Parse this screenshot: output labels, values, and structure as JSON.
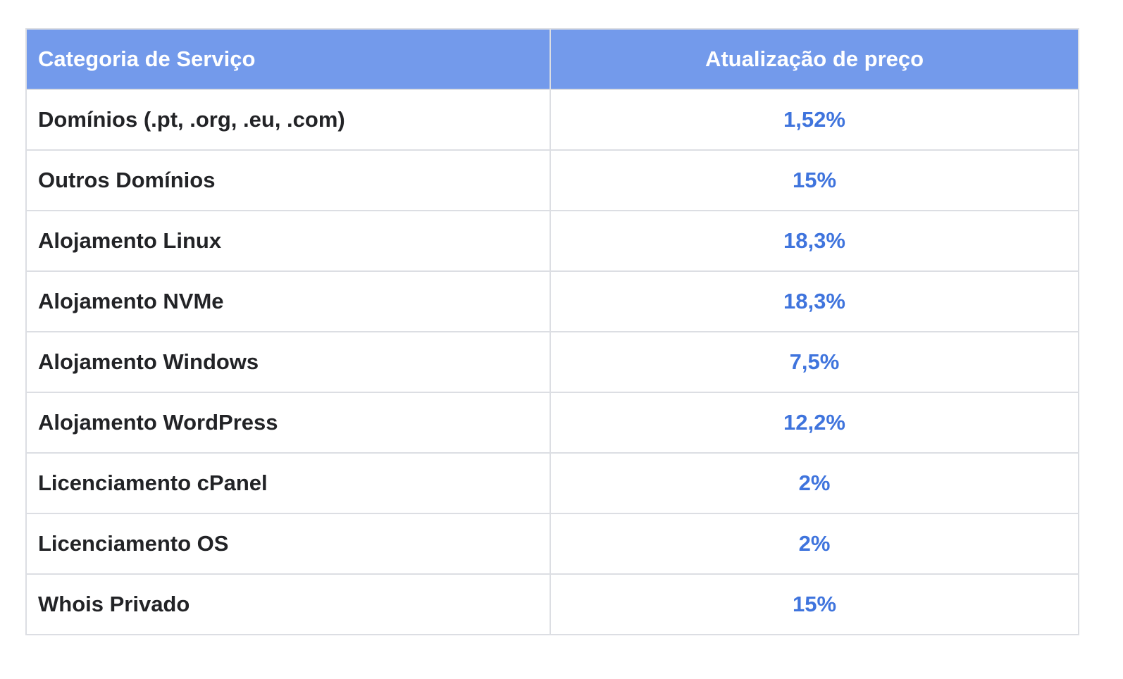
{
  "table": {
    "headers": {
      "category": "Categoria de Serviço",
      "price_update": "Atualização de preço"
    },
    "rows": [
      {
        "category": "Domínios  (.pt, .org, .eu, .com)",
        "price_update": "1,52%"
      },
      {
        "category": "Outros Domínios",
        "price_update": "15%"
      },
      {
        "category": "Alojamento Linux",
        "price_update": "18,3%"
      },
      {
        "category": "Alojamento NVMe",
        "price_update": "18,3%"
      },
      {
        "category": "Alojamento Windows",
        "price_update": "7,5%"
      },
      {
        "category": "Alojamento WordPress",
        "price_update": "12,2%"
      },
      {
        "category": "Licenciamento cPanel",
        "price_update": "2%"
      },
      {
        "category": "Licenciamento OS",
        "price_update": "2%"
      },
      {
        "category": "Whois Privado",
        "price_update": "15%"
      }
    ]
  },
  "colors": {
    "header_background": "#739aeb",
    "header_text": "#ffffff",
    "category_text": "#222326",
    "value_text": "#3f74dd",
    "border": "#dcdee3"
  }
}
